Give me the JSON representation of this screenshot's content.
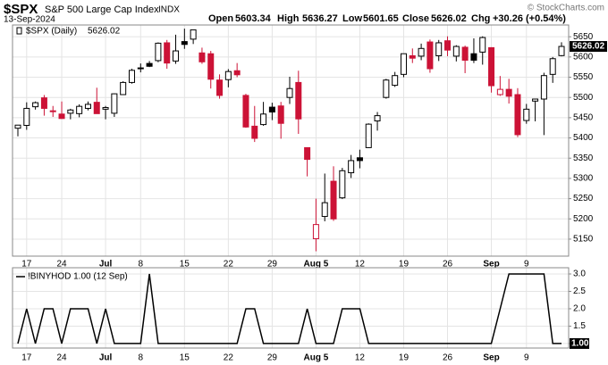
{
  "chart_data": [
    {
      "type": "candlestick",
      "title": "$SPX",
      "subtitle": "S&P 500 Large Cap Index",
      "exchange": "INDX",
      "date": "13-Sep-2024",
      "ohlc_labels": [
        "Open",
        "High",
        "Low",
        "Close",
        "Chg"
      ],
      "change": "+30.26 (+0.54%)",
      "credit": "© StockCharts.com",
      "legend_label": "$SPX (Daily)",
      "categories": [
        null,
        "17",
        null,
        null,
        null,
        "24",
        null,
        null,
        null,
        null,
        "Jul",
        null,
        null,
        null,
        "8",
        null,
        null,
        null,
        null,
        "15",
        null,
        null,
        null,
        null,
        "22",
        null,
        null,
        null,
        null,
        "29",
        null,
        null,
        null,
        null,
        "Aug 5",
        null,
        null,
        null,
        null,
        "12",
        null,
        null,
        null,
        null,
        "19",
        null,
        null,
        null,
        null,
        "26",
        null,
        null,
        null,
        null,
        "Sep",
        null,
        null,
        null,
        "9",
        null,
        null,
        null,
        null
      ],
      "series": [
        {
          "name": "$SPX",
          "up_color": "#000000",
          "down_color": "#cc1236",
          "open": [
            5424,
            5431,
            5477,
            5499,
            5467,
            5459,
            5461,
            5460,
            5473,
            5488,
            5471,
            5461,
            5507,
            5537,
            5572,
            5584,
            5591,
            5635,
            5590,
            5638,
            5644,
            5610,
            5608,
            5543,
            5544,
            5566,
            5505,
            5429,
            5433,
            5476,
            5479,
            5500,
            5537,
            5376,
            5151,
            5206,
            5293,
            5252,
            5314,
            5351,
            5376,
            5442,
            5500,
            5530,
            5557,
            5603,
            5602,
            5637,
            5603,
            5640,
            5602,
            5624,
            5608,
            5612,
            5623,
            5507,
            5520,
            5507,
            5443,
            5491,
            5496,
            5557,
            5603.34
          ],
          "high": [
            5432,
            5488,
            5490,
            5506,
            5479,
            5490,
            5472,
            5483,
            5490,
            5524,
            5479,
            5510,
            5540,
            5571,
            5584,
            5590,
            5636,
            5642,
            5655,
            5670,
            5667,
            5623,
            5615,
            5557,
            5570,
            5585,
            5509,
            5479,
            5489,
            5487,
            5489,
            5551,
            5566,
            5377,
            5250,
            5312,
            5330,
            5326,
            5358,
            5371,
            5436,
            5464,
            5546,
            5563,
            5608,
            5621,
            5633,
            5643,
            5642,
            5651,
            5629,
            5628,
            5646,
            5651,
            5624,
            5553,
            5546,
            5523,
            5484,
            5497,
            5561,
            5600,
            5636.27
          ],
          "low": [
            5404,
            5420,
            5470,
            5455,
            5452,
            5447,
            5446,
            5451,
            5468,
            5460,
            5446,
            5452,
            5507,
            5534,
            5562,
            5575,
            5587,
            5571,
            5583,
            5620,
            5632,
            5583,
            5522,
            5497,
            5525,
            5550,
            5425,
            5390,
            5430,
            5444,
            5398,
            5484,
            5410,
            5305,
            5120,
            5194,
            5195,
            5249,
            5301,
            5325,
            5375,
            5418,
            5497,
            5526,
            5550,
            5585,
            5592,
            5561,
            5590,
            5602,
            5589,
            5560,
            5585,
            5581,
            5512,
            5504,
            5485,
            5402,
            5435,
            5441,
            5407,
            5536,
            5601.65
          ],
          "close": [
            5431.6,
            5473,
            5487,
            5473,
            5465,
            5448,
            5469,
            5478,
            5483,
            5460,
            5475,
            5509,
            5537,
            5567,
            5573,
            5577,
            5634,
            5585,
            5615,
            5631,
            5667,
            5588,
            5545,
            5505,
            5564,
            5556,
            5427,
            5399,
            5459,
            5464,
            5436,
            5522,
            5447,
            5347,
            5186,
            5240,
            5200,
            5319,
            5344,
            5344,
            5434,
            5455,
            5543,
            5554,
            5608,
            5597,
            5621,
            5571,
            5635,
            5617,
            5626,
            5592,
            5592,
            5648,
            5529,
            5520,
            5503,
            5408,
            5471,
            5496,
            5554,
            5595.76,
            5626.02
          ]
        }
      ],
      "ylim": [
        5108,
        5679
      ],
      "yticks": [
        5150,
        5200,
        5250,
        5300,
        5350,
        5400,
        5450,
        5500,
        5550,
        5600,
        5650
      ],
      "grid": true
    },
    {
      "type": "line",
      "legend_label": "!BINYHOD 1.00 (12 Sep)",
      "last_label": "1.00",
      "categories": [
        null,
        "17",
        null,
        null,
        null,
        "24",
        null,
        null,
        null,
        null,
        "Jul",
        null,
        null,
        null,
        "8",
        null,
        null,
        null,
        null,
        "15",
        null,
        null,
        null,
        null,
        "22",
        null,
        null,
        null,
        null,
        "29",
        null,
        null,
        null,
        null,
        "Aug 5",
        null,
        null,
        null,
        null,
        "12",
        null,
        null,
        null,
        null,
        "19",
        null,
        null,
        null,
        null,
        "26",
        null,
        null,
        null,
        null,
        "Sep",
        null,
        null,
        null,
        "9",
        null,
        null,
        null,
        null
      ],
      "series": [
        {
          "name": "!BINYHOD",
          "color": "#000000",
          "values": [
            1,
            2,
            1,
            2,
            2,
            1,
            2,
            2,
            2,
            1,
            2,
            1,
            1,
            1,
            1,
            3,
            1,
            1,
            1,
            1,
            1,
            1,
            1,
            1,
            1,
            1,
            2,
            2,
            1,
            1,
            1,
            1,
            1,
            2,
            1,
            1,
            1,
            2,
            2,
            2,
            1,
            1,
            1,
            1,
            1,
            1,
            1,
            1,
            1,
            1,
            1,
            1,
            1,
            1,
            1,
            2,
            3,
            3,
            3,
            3,
            3,
            1,
            1
          ]
        }
      ],
      "ylim": [
        0.87,
        3.18
      ],
      "yticks": [
        {
          "value": 1,
          "label": "1.0"
        },
        {
          "value": 1.5,
          "label": "1.5"
        },
        {
          "value": 2,
          "label": "2.0"
        },
        {
          "value": 2.5,
          "label": "2.5"
        },
        {
          "value": 3,
          "label": "3.0"
        }
      ],
      "grid": true
    }
  ]
}
